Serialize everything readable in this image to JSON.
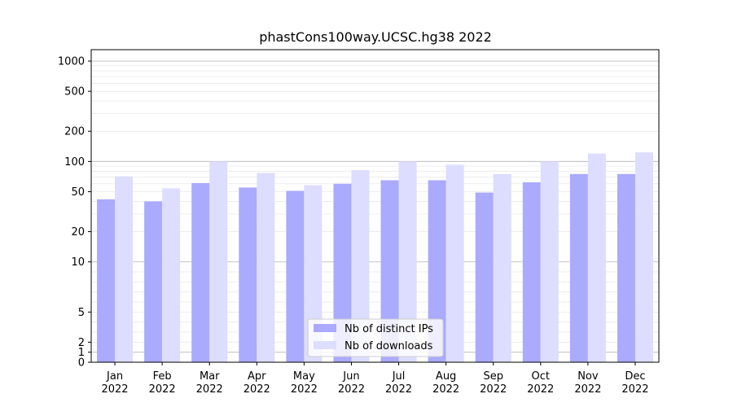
{
  "chart_data": {
    "type": "bar",
    "title": "phastCons100way.UCSC.hg38 2022",
    "xlabel": "",
    "ylabel": "",
    "yscale": "symlog",
    "ylim": [
      0,
      1300
    ],
    "grid": true,
    "legend_position": "bottom-center",
    "categories": [
      [
        "Jan",
        "2022"
      ],
      [
        "Feb",
        "2022"
      ],
      [
        "Mar",
        "2022"
      ],
      [
        "Apr",
        "2022"
      ],
      [
        "May",
        "2022"
      ],
      [
        "Jun",
        "2022"
      ],
      [
        "Jul",
        "2022"
      ],
      [
        "Aug",
        "2022"
      ],
      [
        "Sep",
        "2022"
      ],
      [
        "Oct",
        "2022"
      ],
      [
        "Nov",
        "2022"
      ],
      [
        "Dec",
        "2022"
      ]
    ],
    "yticks": [
      {
        "value": 0,
        "label": "0"
      },
      {
        "value": 1,
        "label": "1"
      },
      {
        "value": 2,
        "label": "2"
      },
      {
        "value": 5,
        "label": "5"
      },
      {
        "value": 10,
        "label": "10"
      },
      {
        "value": 20,
        "label": "20"
      },
      {
        "value": 50,
        "label": "50"
      },
      {
        "value": 100,
        "label": "100"
      },
      {
        "value": 200,
        "label": "200"
      },
      {
        "value": 500,
        "label": "500"
      },
      {
        "value": 1000,
        "label": "1000"
      }
    ],
    "series": [
      {
        "name": "Nb of distinct IPs",
        "color": "#aaaaff",
        "values": [
          42,
          40,
          61,
          55,
          51,
          60,
          65,
          65,
          49,
          62,
          75,
          75
        ]
      },
      {
        "name": "Nb of downloads",
        "color": "#ddddff",
        "values": [
          71,
          54,
          100,
          77,
          58,
          82,
          100,
          93,
          75,
          100,
          120,
          123
        ]
      }
    ]
  }
}
